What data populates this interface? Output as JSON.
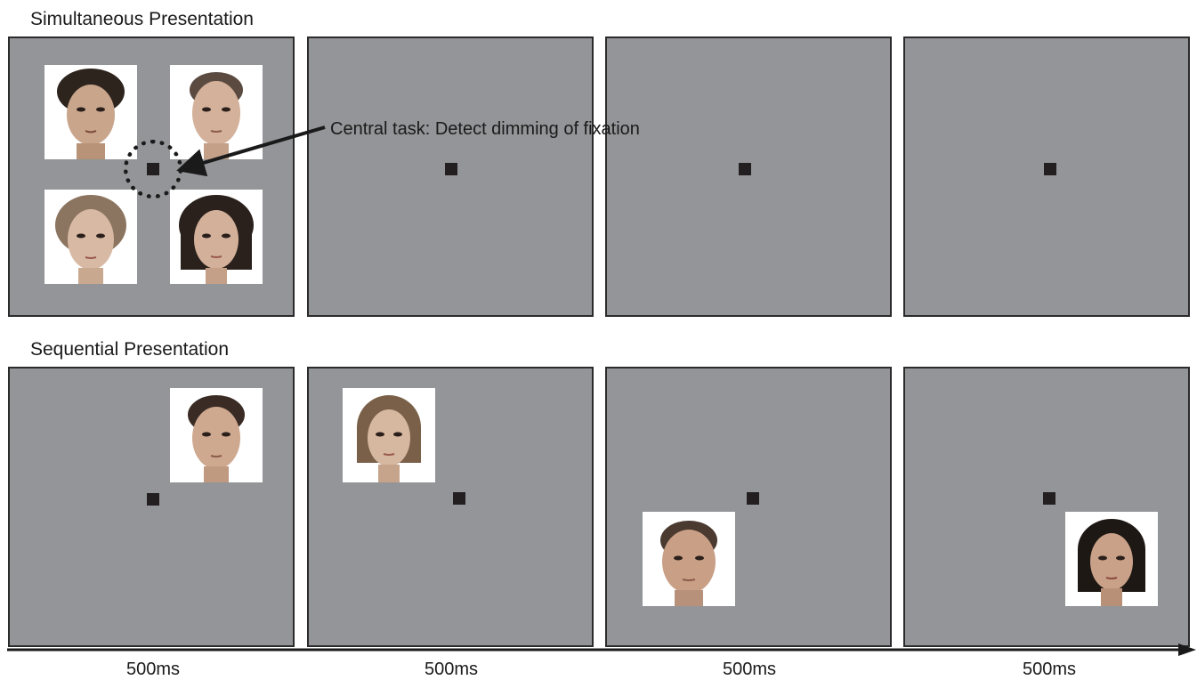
{
  "rows": {
    "simultaneous": {
      "title": "Simultaneous Presentation",
      "annotation": "Central task: Detect dimming of fixation"
    },
    "sequential": {
      "title": "Sequential Presentation"
    }
  },
  "timeline": {
    "durations": [
      "500ms",
      "500ms",
      "500ms",
      "500ms"
    ]
  },
  "colors": {
    "screen": "#939598",
    "fixation": "#231f20",
    "face_background": "#ffffff"
  },
  "icons": [
    "face-photo",
    "fixation-square",
    "dotted-circle",
    "arrow"
  ]
}
